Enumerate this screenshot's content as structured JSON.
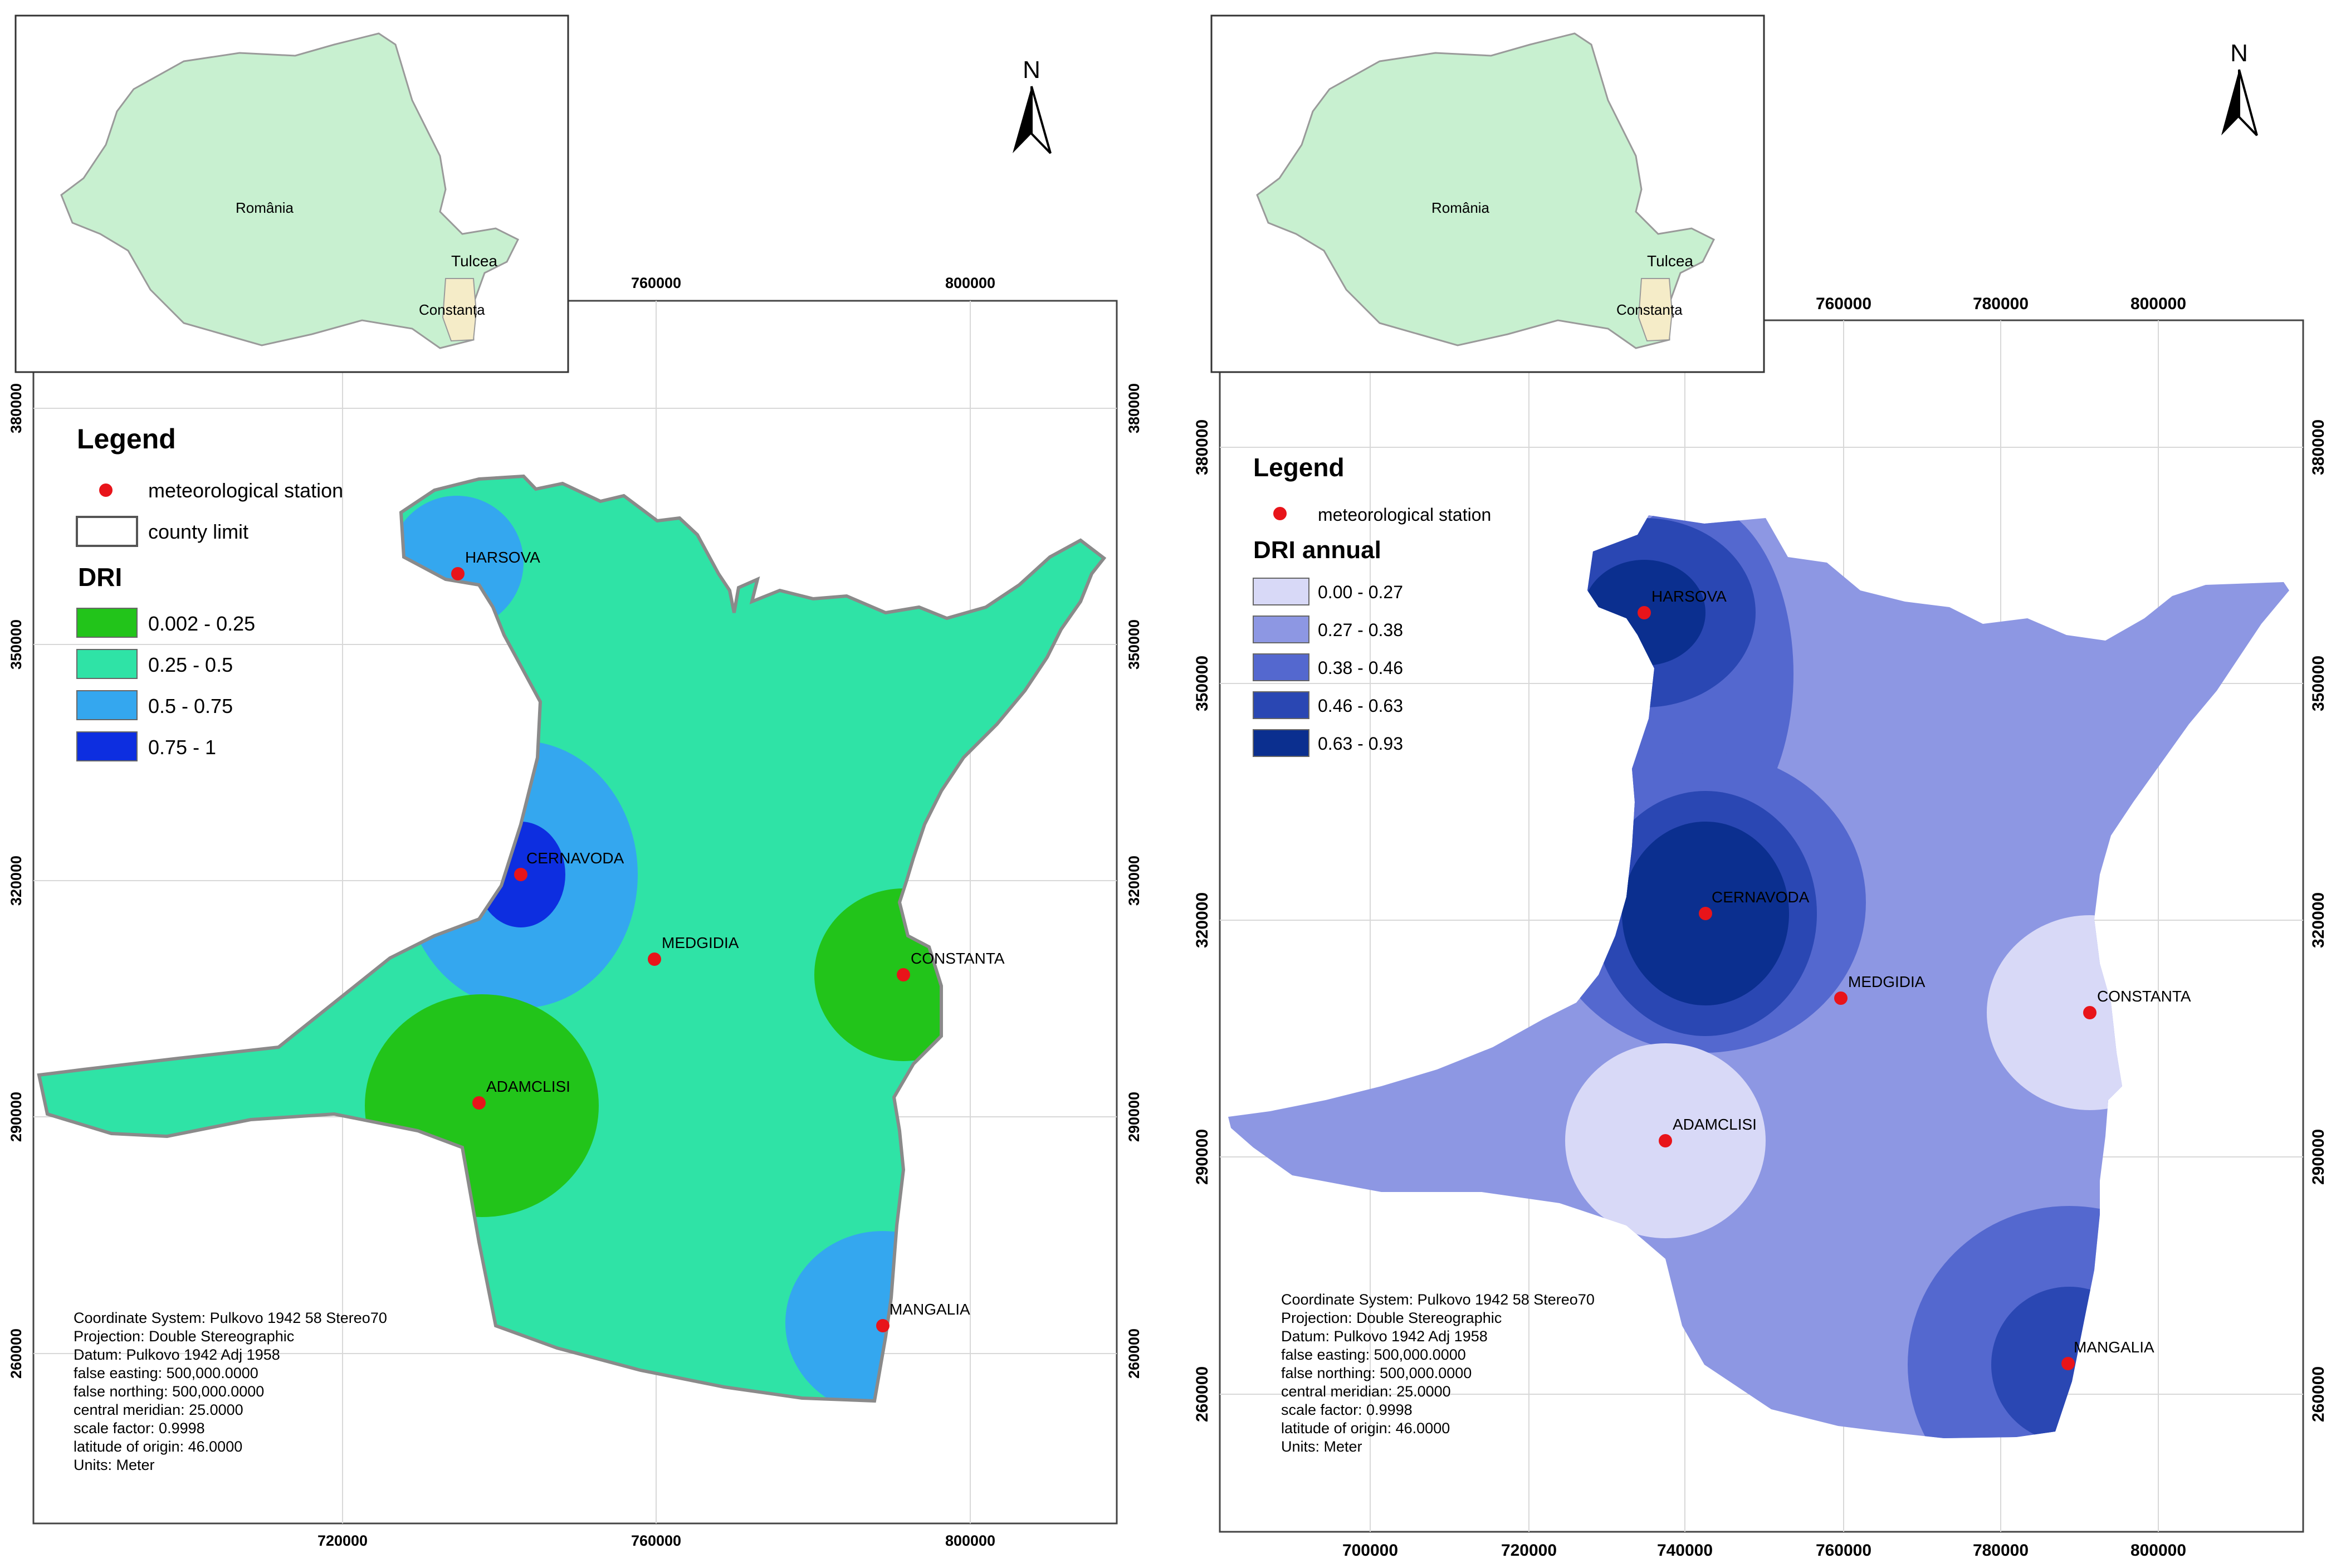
{
  "left_map": {
    "inset": {
      "country": "România",
      "county_a": "Tulcea",
      "county_b": "Constanța"
    },
    "north": "N",
    "x_ticks_top": [
      "760000",
      "800000"
    ],
    "x_ticks_bottom": [
      "720000",
      "760000",
      "800000"
    ],
    "y_ticks": [
      "380000",
      "350000",
      "320000",
      "290000",
      "260000"
    ],
    "legend": {
      "title": "Legend",
      "station_label": "meteorological station",
      "county_label": "county limit",
      "dri_title": "DRI",
      "classes": [
        {
          "label": "0.002 - 0.25",
          "color": "#22c41a"
        },
        {
          "label": "0.25 - 0.5",
          "color": "#2fe3a6"
        },
        {
          "label": "0.5 - 0.75",
          "color": "#34a7ef"
        },
        {
          "label": "0.75 - 1",
          "color": "#0d2ee0"
        }
      ]
    },
    "stations": [
      "HARSOVA",
      "CERNAVODA",
      "MEDGIDIA",
      "CONSTANTA",
      "ADAMCLISI",
      "MANGALIA"
    ],
    "info": [
      "Coordinate System: Pulkovo 1942 58 Stereo70",
      "Projection: Double Stereographic",
      "Datum: Pulkovo 1942 Adj 1958",
      "false easting: 500,000.0000",
      "false northing: 500,000.0000",
      "central meridian: 25.0000",
      "scale factor: 0.9998",
      "latitude of origin: 46.0000",
      "Units: Meter"
    ]
  },
  "right_map": {
    "inset": {
      "country": "România",
      "county_a": "Tulcea",
      "county_b": "Constanța"
    },
    "north": "N",
    "x_ticks_top": [
      "760000",
      "780000",
      "800000"
    ],
    "x_ticks_bottom": [
      "700000",
      "720000",
      "740000",
      "760000",
      "780000",
      "800000"
    ],
    "y_ticks": [
      "380000",
      "350000",
      "320000",
      "290000",
      "260000"
    ],
    "legend": {
      "title": "Legend",
      "station_label": "meteorological station",
      "dri_title": "DRI annual",
      "classes": [
        {
          "label": "0.00 - 0.27",
          "color": "#d8d9f7"
        },
        {
          "label": "0.27 - 0.38",
          "color": "#8d97e3"
        },
        {
          "label": "0.38 - 0.46",
          "color": "#5468cf"
        },
        {
          "label": "0.46 - 0.63",
          "color": "#2a47b3"
        },
        {
          "label": "0.63 - 0.93",
          "color": "#0b2f8f"
        }
      ]
    },
    "stations": [
      "HARSOVA",
      "CERNAVODA",
      "MEDGIDIA",
      "CONSTANTA",
      "ADAMCLISI",
      "MANGALIA"
    ],
    "info": [
      "Coordinate System: Pulkovo 1942 58 Stereo70",
      "Projection: Double Stereographic",
      "Datum: Pulkovo 1942 Adj 1958",
      "false easting: 500,000.0000",
      "false northing: 500,000.0000",
      "central meridian: 25.0000",
      "scale factor: 0.9998",
      "latitude of origin: 46.0000",
      "Units: Meter"
    ]
  },
  "colors": {
    "inset_country": "#c8f0d0",
    "inset_county": "#f5ecc8",
    "station": "#e8141a",
    "county_outline": "#8a8a8a",
    "grid": "#d8d8d8"
  }
}
